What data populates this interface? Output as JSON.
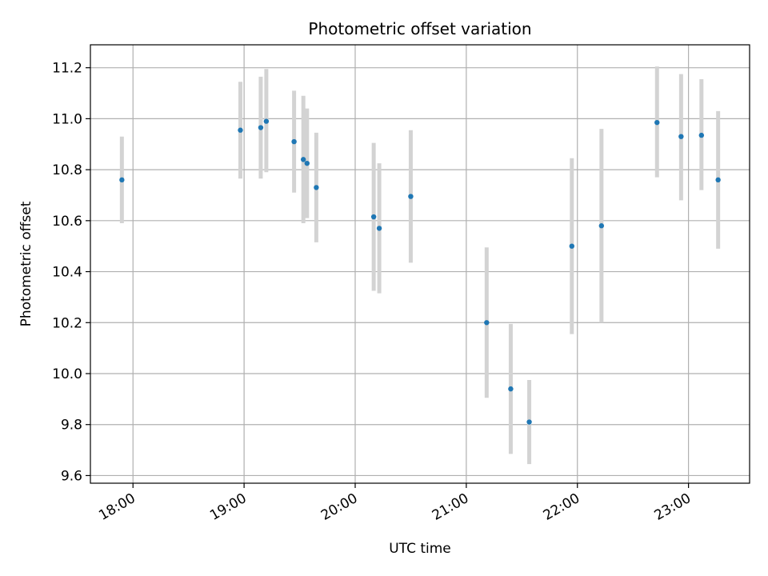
{
  "chart_data": {
    "type": "scatter",
    "title": "Photometric offset variation",
    "xlabel": "UTC time",
    "ylabel": "Photometric offset",
    "xlim": [
      "17:37",
      "23:33"
    ],
    "ylim": [
      9.57,
      11.29
    ],
    "x_ticks": [
      "18:00",
      "19:00",
      "20:00",
      "21:00",
      "22:00",
      "23:00"
    ],
    "y_ticks": [
      9.6,
      9.8,
      10.0,
      10.2,
      10.4,
      10.6,
      10.8,
      11.0,
      11.2
    ],
    "y_tick_labels": [
      "9.6",
      "9.8",
      "10.0",
      "10.2",
      "10.4",
      "10.6",
      "10.8",
      "11.0",
      "11.2"
    ],
    "grid": true,
    "colors": {
      "point": "#1f77b4",
      "errorbar": "#d3d3d3",
      "grid": "#b0b0b0"
    },
    "points": [
      {
        "x": "17:54",
        "y": 10.76,
        "low": 10.59,
        "high": 10.93
      },
      {
        "x": "18:58",
        "y": 10.955,
        "low": 10.765,
        "high": 11.145
      },
      {
        "x": "19:09",
        "y": 10.965,
        "low": 10.765,
        "high": 11.165
      },
      {
        "x": "19:12",
        "y": 10.99,
        "low": 10.79,
        "high": 11.195
      },
      {
        "x": "19:27",
        "y": 10.91,
        "low": 10.71,
        "high": 11.11
      },
      {
        "x": "19:32",
        "y": 10.84,
        "low": 10.59,
        "high": 11.09
      },
      {
        "x": "19:34",
        "y": 10.825,
        "low": 10.61,
        "high": 11.04
      },
      {
        "x": "19:39",
        "y": 10.73,
        "low": 10.515,
        "high": 10.945
      },
      {
        "x": "20:10",
        "y": 10.615,
        "low": 10.325,
        "high": 10.905
      },
      {
        "x": "20:13",
        "y": 10.57,
        "low": 10.315,
        "high": 10.825
      },
      {
        "x": "20:30",
        "y": 10.695,
        "low": 10.435,
        "high": 10.955
      },
      {
        "x": "21:11",
        "y": 10.2,
        "low": 9.905,
        "high": 10.495
      },
      {
        "x": "21:24",
        "y": 9.94,
        "low": 9.685,
        "high": 10.195
      },
      {
        "x": "21:34",
        "y": 9.81,
        "low": 9.645,
        "high": 9.975
      },
      {
        "x": "21:57",
        "y": 10.5,
        "low": 10.155,
        "high": 10.845
      },
      {
        "x": "22:13",
        "y": 10.58,
        "low": 10.2,
        "high": 10.96
      },
      {
        "x": "22:43",
        "y": 10.985,
        "low": 10.77,
        "high": 11.205
      },
      {
        "x": "22:56",
        "y": 10.93,
        "low": 10.68,
        "high": 11.175
      },
      {
        "x": "23:07",
        "y": 10.935,
        "low": 10.72,
        "high": 11.155
      },
      {
        "x": "23:16",
        "y": 10.76,
        "low": 10.49,
        "high": 11.03
      }
    ]
  }
}
